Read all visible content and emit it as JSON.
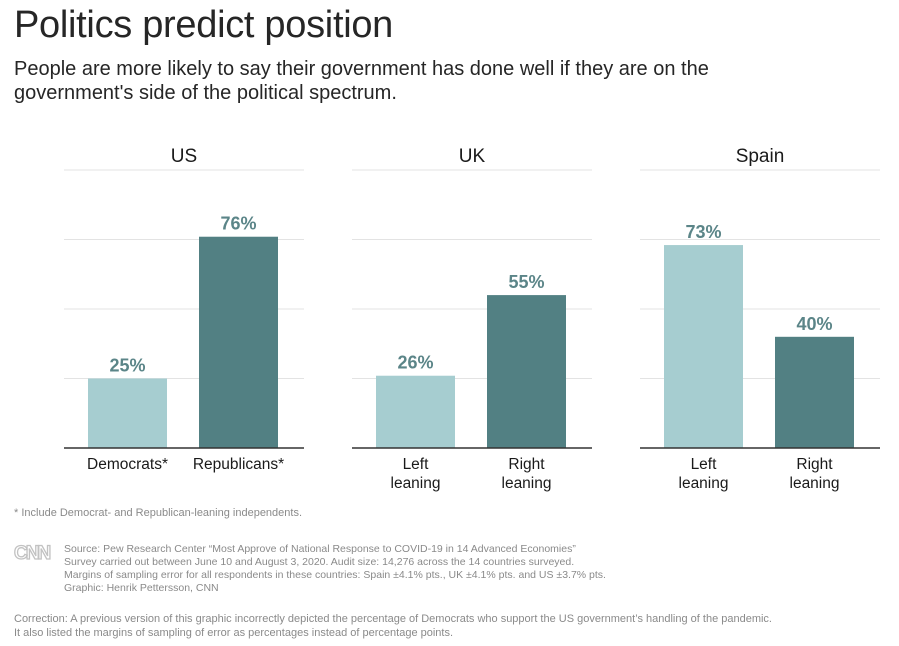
{
  "title": "Politics predict position",
  "subtitle": "People are more likely to say their government has done well if they are on the government's side of the political spectrum.",
  "colors": {
    "light": "#a6cdd0",
    "dark": "#528083",
    "label": "#5b8588",
    "grid": "#e3e3e3",
    "axis": "#333333"
  },
  "chart_data": [
    {
      "type": "bar",
      "title": "US",
      "ylim": [
        0,
        100
      ],
      "categories": [
        [
          "Democrats*"
        ],
        [
          "Republicans*"
        ]
      ],
      "values": [
        25,
        76
      ],
      "value_labels": [
        "25%",
        "76%"
      ]
    },
    {
      "type": "bar",
      "title": "UK",
      "ylim": [
        0,
        100
      ],
      "categories": [
        [
          "Left",
          "leaning"
        ],
        [
          "Right",
          "leaning"
        ]
      ],
      "values": [
        26,
        55
      ],
      "value_labels": [
        "26%",
        "55%"
      ]
    },
    {
      "type": "bar",
      "title": "Spain",
      "ylim": [
        0,
        100
      ],
      "categories": [
        [
          "Left",
          "leaning"
        ],
        [
          "Right",
          "leaning"
        ]
      ],
      "values": [
        73,
        40
      ],
      "value_labels": [
        "73%",
        "40%"
      ]
    }
  ],
  "footnote": "* Include Democrat- and Republican-leaning independents.",
  "logo_text": "CNN",
  "source_lines": [
    "Source: Pew Research Center “Most Approve of National Response to COVID-19 in 14 Advanced Economies”",
    "Survey carried out between June 10 and August 3, 2020. Audit size: 14,276 across the 14 countries surveyed.",
    "Margins of sampling error for all respondents in these countries: Spain ±4.1% pts., UK ±4.1% pts. and US ±3.7% pts.",
    "Graphic: Henrik Pettersson, CNN"
  ],
  "correction_lines": [
    "Correction: A previous version of this graphic incorrectly depicted the percentage of Democrats who support the US government’s handling of the pandemic.",
    "It also listed the margins of sampling of error as percentages instead of percentage points."
  ]
}
